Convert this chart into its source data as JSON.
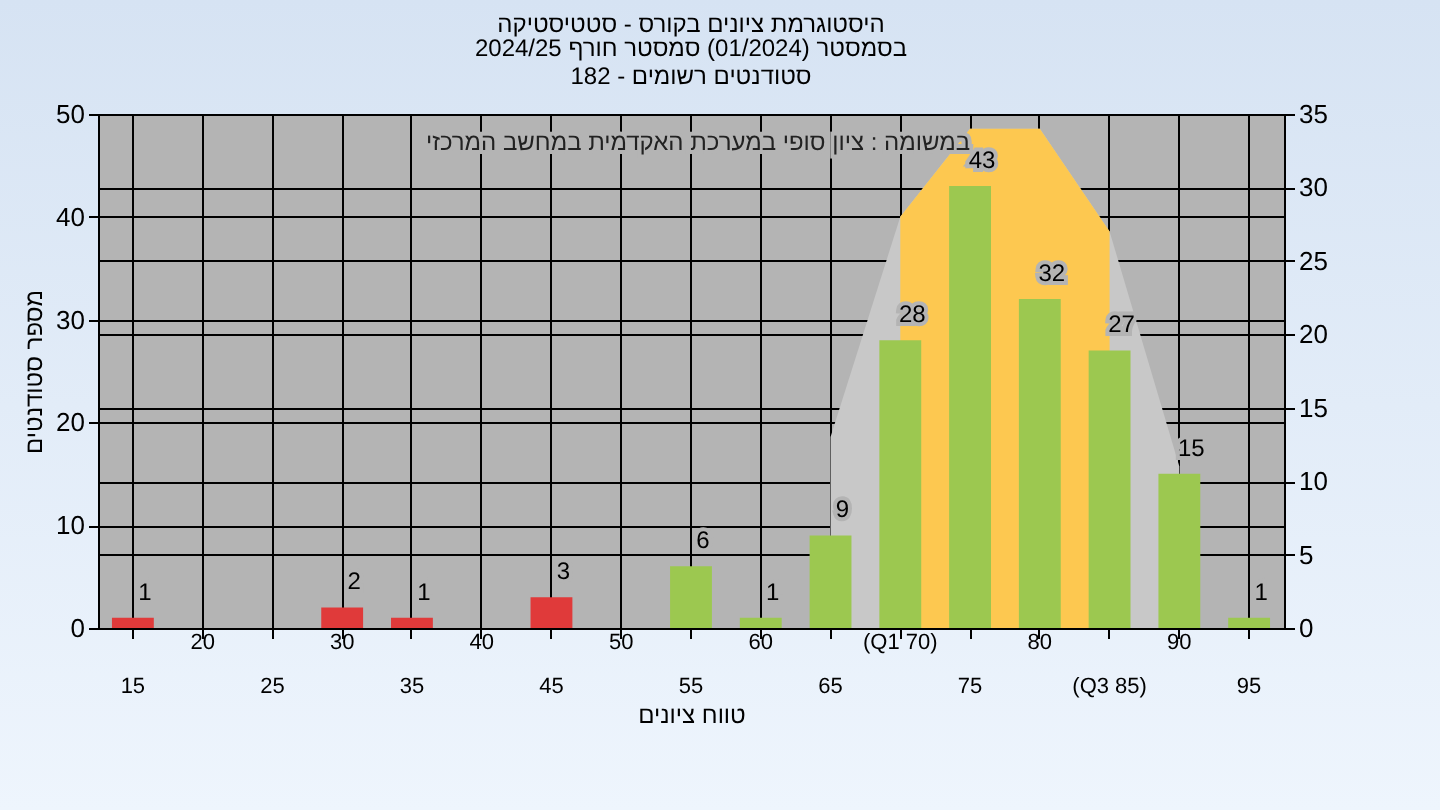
{
  "chart_data": {
    "type": "bar",
    "title": "היסטוגרמת ציונים בקורס - סטטיסטיקה",
    "subtitle": [
      "בסמסטר (01/2024) סמסטר חורף 2024/25",
      "סטודנטים רשומים - 182"
    ],
    "xlabel": "טווח ציונים",
    "ylabel": "מספר סטודנטים",
    "annotations": [
      "במשומה : ציון סופי במערכת האקדמית במחשב המרכזי"
    ],
    "categories": [
      "15",
      "20",
      "25",
      "30",
      "35",
      "40",
      "45",
      "50",
      "55",
      "60",
      "65",
      "(Q1 70)",
      "75",
      "80",
      "(Q3 85)",
      "90",
      "95"
    ],
    "series": [
      {
        "values": [
          1,
          0,
          0,
          2,
          1,
          0,
          3,
          0,
          6,
          1,
          9,
          28,
          43,
          32,
          27,
          15,
          1
        ],
        "colors": [
          "#e03a3a",
          "#e03a3a",
          "#e03a3a",
          "#e03a3a",
          "#e03a3a",
          "#e03a3a",
          "#e03a3a",
          "#e03a3a",
          "#9cc850",
          "#9cc850",
          "#9cc850",
          "#9cc850",
          "#9cc850",
          "#9cc850",
          "#9cc850",
          "#9cc850",
          "#9cc850"
        ],
        "value_labels": [
          "1",
          null,
          null,
          "2",
          "1",
          null,
          "3",
          null,
          "6",
          "1",
          "9",
          "28",
          "43",
          "32",
          "27",
          "15",
          "1"
        ]
      },
      {
        "type": "area",
        "axis": "y2",
        "color": "#c8c8c8",
        "values": [
          null,
          null,
          null,
          null,
          null,
          null,
          null,
          null,
          null,
          null,
          13,
          28,
          34,
          34,
          27,
          11,
          null
        ]
      },
      {
        "type": "area",
        "axis": "y2",
        "color": "#fdc850",
        "values": [
          null,
          null,
          null,
          null,
          null,
          null,
          null,
          null,
          null,
          null,
          null,
          28,
          34,
          34,
          27,
          null,
          null
        ]
      }
    ],
    "ylim": [
      0,
      50
    ],
    "yticks": [
      0,
      10,
      20,
      30,
      40,
      50
    ],
    "y2lim": [
      0,
      35
    ],
    "y2ticks": [
      0,
      5,
      10,
      15,
      20,
      25,
      30,
      35
    ],
    "grid": true
  }
}
